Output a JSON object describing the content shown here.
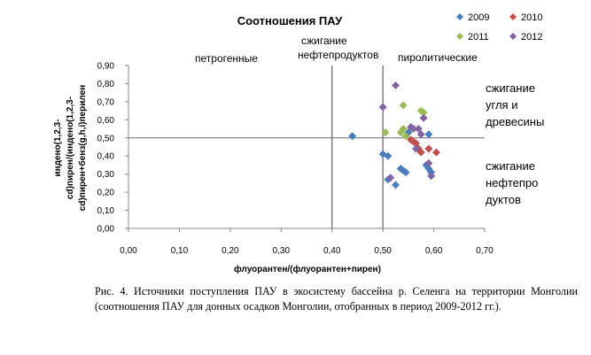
{
  "chart_data": {
    "type": "scatter",
    "title": "Соотношения ПАУ",
    "xlabel": "флуорантен/(флуорантен+пирен)",
    "ylabel_lines": [
      "инденo(1,2,3-",
      "cd)пирен/(инденo(1,2,3-",
      "cd)пирен+бенз(g,h,i)перилен"
    ],
    "xlim": [
      0,
      0.7
    ],
    "ylim": [
      0,
      0.9
    ],
    "x_ticks": [
      "0,00",
      "0,10",
      "0,20",
      "0,30",
      "0,40",
      "0,50",
      "0,60",
      "0,70"
    ],
    "y_ticks": [
      "0,00",
      "0,10",
      "0,20",
      "0,30",
      "0,40",
      "0,50",
      "0,60",
      "0,70",
      "0,80",
      "0,90"
    ],
    "grid": false,
    "legend_position": "top-right",
    "reference_lines": {
      "vertical": [
        0.4,
        0.5
      ],
      "horizontal": [
        0.5
      ]
    },
    "region_labels": {
      "petrogenic": "петрогенные",
      "combustion_petroleum_top": [
        "сжигание",
        "нефтепродуктов"
      ],
      "pyrolytic": "пиролитические",
      "coal_wood": [
        "сжигание",
        "угля и",
        "древесины"
      ],
      "combustion_petroleum_right": [
        "сжигание",
        "нефтепро",
        "дуктов"
      ]
    },
    "series": [
      {
        "name": "2009",
        "color": "#4a7ebb",
        "points": [
          [
            0.44,
            0.51
          ],
          [
            0.5,
            0.41
          ],
          [
            0.51,
            0.4
          ],
          [
            0.51,
            0.27
          ],
          [
            0.525,
            0.24
          ],
          [
            0.535,
            0.33
          ],
          [
            0.54,
            0.32
          ],
          [
            0.545,
            0.31
          ],
          [
            0.55,
            0.53
          ],
          [
            0.585,
            0.35
          ],
          [
            0.59,
            0.52
          ],
          [
            0.59,
            0.33
          ],
          [
            0.595,
            0.31
          ]
        ]
      },
      {
        "name": "2010",
        "color": "#c0504d",
        "points": [
          [
            0.555,
            0.49
          ],
          [
            0.56,
            0.48
          ],
          [
            0.565,
            0.47
          ],
          [
            0.57,
            0.44
          ],
          [
            0.575,
            0.42
          ],
          [
            0.59,
            0.44
          ],
          [
            0.605,
            0.42
          ]
        ]
      },
      {
        "name": "2011",
        "color": "#9bbb59",
        "points": [
          [
            0.505,
            0.53
          ],
          [
            0.535,
            0.53
          ],
          [
            0.54,
            0.55
          ],
          [
            0.54,
            0.68
          ],
          [
            0.545,
            0.51
          ],
          [
            0.575,
            0.65
          ],
          [
            0.58,
            0.64
          ]
        ]
      },
      {
        "name": "2012",
        "color": "#8064a2",
        "points": [
          [
            0.5,
            0.67
          ],
          [
            0.515,
            0.28
          ],
          [
            0.525,
            0.79
          ],
          [
            0.555,
            0.56
          ],
          [
            0.56,
            0.55
          ],
          [
            0.565,
            0.44
          ],
          [
            0.57,
            0.55
          ],
          [
            0.575,
            0.52
          ],
          [
            0.58,
            0.61
          ],
          [
            0.59,
            0.36
          ],
          [
            0.595,
            0.29
          ]
        ]
      }
    ]
  },
  "caption": "Рис. 4. Источники поступления ПАУ в экосистему бассейна р. Селенга на территории Монголии (соотношения ПАУ для донных осадков Монголии, отобранных в период 2009-2012 гг.)."
}
